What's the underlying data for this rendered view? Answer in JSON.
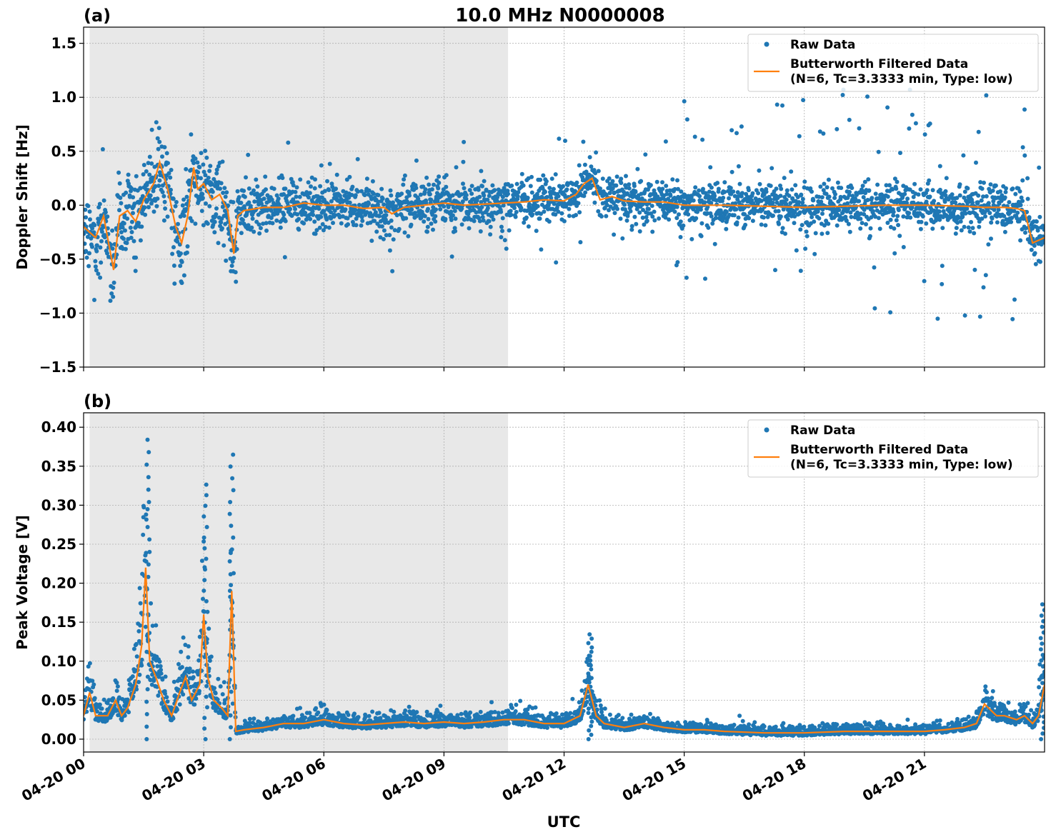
{
  "figure": {
    "title": "10.0 MHz N0000008",
    "xlabel": "UTC",
    "x_tick_labels": [
      "04-20 00",
      "04-20 03",
      "04-20 06",
      "04-20 09",
      "04-20 12",
      "04-20 15",
      "04-20 18",
      "04-20 21"
    ],
    "colors": {
      "raw": "#1f77b4",
      "filtered": "#ff7f0e",
      "night_shade": "#e8e8e8",
      "grid": "#b0b0b0"
    }
  },
  "chart_data": [
    {
      "panel_label": "(a)",
      "type": "scatter",
      "ylabel": "Doppler Shift [Hz]",
      "xlim": [
        0,
        24
      ],
      "ylim": [
        -1.5,
        1.65
      ],
      "yticks": [
        -1.5,
        -1.0,
        -0.5,
        0.0,
        0.5,
        1.0,
        1.5
      ],
      "ytick_labels": [
        "−1.5",
        "−1.0",
        "−0.5",
        "0.0",
        "0.5",
        "1.0",
        "1.5"
      ],
      "shaded_x_range": [
        0.15,
        10.6
      ],
      "grid": true,
      "legend": {
        "placement": "top-right",
        "entries": [
          "Raw Data",
          "Butterworth Filtered Data",
          "(N=6, Tc=3.3333 min, Type: low)"
        ]
      },
      "series": [
        {
          "name": "Butterworth Filtered Data",
          "x": [
            0,
            0.3,
            0.5,
            0.75,
            0.9,
            1.1,
            1.3,
            1.5,
            1.75,
            1.9,
            2.1,
            2.3,
            2.45,
            2.6,
            2.75,
            2.85,
            3.0,
            3.2,
            3.4,
            3.6,
            3.75,
            3.85,
            4.0,
            4.5,
            5.0,
            5.5,
            6.0,
            6.5,
            7.0,
            7.5,
            7.7,
            8.0,
            8.5,
            9.0,
            9.5,
            10.0,
            10.5,
            11.0,
            11.5,
            12.0,
            12.3,
            12.5,
            12.7,
            12.9,
            13.2,
            13.5,
            14.0,
            14.5,
            15.0,
            16.0,
            17.0,
            18.0,
            19.0,
            20.0,
            21.0,
            22.0,
            22.5,
            23.0,
            23.3,
            23.5,
            23.7,
            24.0
          ],
          "y": [
            -0.2,
            -0.3,
            -0.1,
            -0.6,
            -0.1,
            -0.05,
            -0.15,
            0.05,
            0.2,
            0.4,
            0.15,
            -0.2,
            -0.35,
            -0.1,
            0.35,
            0.15,
            0.2,
            0.05,
            0.1,
            -0.05,
            -0.45,
            -0.1,
            -0.05,
            -0.02,
            -0.02,
            0.02,
            0.0,
            0.0,
            -0.03,
            -0.02,
            -0.08,
            -0.02,
            0.0,
            0.02,
            0.0,
            0.01,
            0.02,
            0.03,
            0.05,
            0.04,
            0.1,
            0.2,
            0.25,
            0.05,
            0.08,
            0.04,
            0.03,
            0.03,
            0.0,
            0.0,
            -0.01,
            -0.02,
            -0.01,
            0.0,
            0.0,
            -0.01,
            -0.02,
            -0.02,
            -0.03,
            -0.05,
            -0.35,
            -0.3
          ]
        }
      ],
      "raw_scatter": {
        "name": "Raw Data",
        "point_count": 3000,
        "dense_band_halfwidth_hz": 0.25,
        "outlier_range_hz": [
          -1.37,
          1.07
        ]
      }
    },
    {
      "panel_label": "(b)",
      "type": "scatter",
      "ylabel": "Peak Voltage [V]",
      "xlim": [
        0,
        24
      ],
      "ylim": [
        -0.0165,
        0.4185
      ],
      "yticks": [
        0.0,
        0.05,
        0.1,
        0.15,
        0.2,
        0.25,
        0.3,
        0.35,
        0.4
      ],
      "ytick_labels": [
        "0.00",
        "0.05",
        "0.10",
        "0.15",
        "0.20",
        "0.25",
        "0.30",
        "0.35",
        "0.40"
      ],
      "shaded_x_range": [
        0.15,
        10.6
      ],
      "grid": true,
      "legend": {
        "placement": "top-right",
        "entries": [
          "Raw Data",
          "Butterworth Filtered Data",
          "(N=6, Tc=3.3333 min, Type: low)"
        ]
      },
      "series": [
        {
          "name": "Butterworth Filtered Data",
          "x": [
            0,
            0.15,
            0.3,
            0.6,
            0.8,
            0.95,
            1.1,
            1.3,
            1.45,
            1.55,
            1.65,
            1.8,
            2.0,
            2.2,
            2.4,
            2.55,
            2.7,
            2.9,
            3.0,
            3.1,
            3.25,
            3.45,
            3.6,
            3.7,
            3.8,
            4.0,
            4.5,
            5.0,
            5.5,
            6.0,
            6.5,
            7.0,
            7.5,
            8.0,
            8.5,
            9.0,
            9.5,
            10.0,
            10.5,
            11.0,
            11.5,
            12.0,
            12.4,
            12.6,
            12.8,
            13.0,
            13.5,
            14.0,
            14.5,
            15.0,
            15.5,
            16.0,
            17.0,
            18.0,
            19.0,
            20.0,
            21.0,
            21.5,
            22.0,
            22.3,
            22.5,
            22.8,
            23.0,
            23.3,
            23.5,
            23.7,
            23.85,
            24.0
          ],
          "y": [
            0.03,
            0.06,
            0.03,
            0.03,
            0.05,
            0.03,
            0.04,
            0.07,
            0.12,
            0.22,
            0.1,
            0.08,
            0.05,
            0.03,
            0.06,
            0.08,
            0.05,
            0.07,
            0.16,
            0.08,
            0.05,
            0.04,
            0.03,
            0.19,
            0.01,
            0.012,
            0.015,
            0.02,
            0.02,
            0.025,
            0.02,
            0.018,
            0.02,
            0.022,
            0.02,
            0.022,
            0.02,
            0.022,
            0.025,
            0.025,
            0.02,
            0.02,
            0.03,
            0.07,
            0.03,
            0.02,
            0.015,
            0.02,
            0.015,
            0.012,
            0.012,
            0.01,
            0.008,
            0.008,
            0.01,
            0.01,
            0.01,
            0.012,
            0.015,
            0.02,
            0.045,
            0.03,
            0.03,
            0.025,
            0.03,
            0.02,
            0.03,
            0.07
          ]
        }
      ],
      "raw_scatter": {
        "name": "Raw Data",
        "point_count": 3000,
        "peak_values_v": [
          0.4,
          0.34,
          0.38,
          0.14,
          0.18
        ]
      }
    }
  ]
}
